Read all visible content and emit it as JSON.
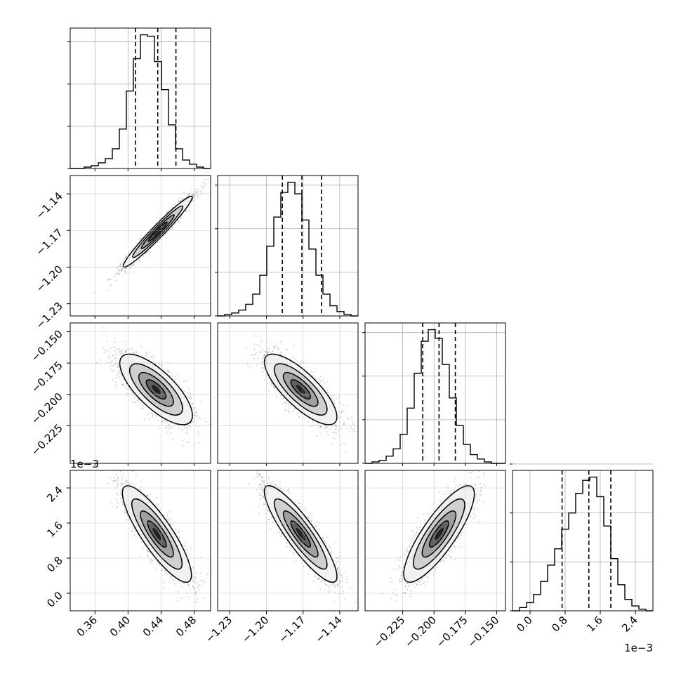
{
  "chart_data": {
    "type": "corner",
    "title": "",
    "grid": true,
    "parameters": [
      {
        "name": "",
        "range": [
          0.33,
          0.5
        ],
        "ticks": [
          0.36,
          0.4,
          0.44,
          0.48
        ],
        "tick_labels": [
          "0.36",
          "0.40",
          "0.44",
          "0.48"
        ],
        "scale_label": "",
        "quantiles": [
          0.409,
          0.436,
          0.458
        ],
        "hist_values": [
          0,
          0,
          1,
          2,
          4,
          7,
          14,
          28,
          55,
          78,
          95,
          94,
          76,
          56,
          31,
          14,
          6,
          3,
          1,
          0
        ],
        "hist_ticks": [
          0,
          30,
          60,
          90
        ]
      },
      {
        "name": "",
        "range": [
          -1.24,
          -1.125
        ],
        "ticks": [
          -1.23,
          -1.2,
          -1.17,
          -1.14
        ],
        "tick_labels": [
          "−1.23",
          "−1.20",
          "−1.17",
          "−1.14"
        ],
        "scale_label": "",
        "quantiles": [
          -1.187,
          -1.171,
          -1.155
        ],
        "hist_values": [
          0,
          1,
          2,
          4,
          8,
          15,
          28,
          48,
          68,
          85,
          92,
          84,
          66,
          46,
          28,
          15,
          7,
          3,
          1,
          0
        ],
        "hist_ticks": [
          0,
          30,
          60,
          90
        ]
      },
      {
        "name": "",
        "range": [
          -0.255,
          -0.143
        ],
        "ticks": [
          -0.225,
          -0.2,
          -0.175,
          -0.15
        ],
        "tick_labels": [
          "−0.225",
          "−0.200",
          "−0.175",
          "−0.150"
        ],
        "scale_label": "",
        "quantiles": [
          -0.209,
          -0.196,
          -0.183
        ],
        "hist_values": [
          0,
          1,
          2,
          5,
          10,
          20,
          38,
          62,
          84,
          92,
          86,
          68,
          45,
          26,
          13,
          6,
          3,
          1,
          0,
          0
        ],
        "hist_ticks": [
          0,
          30,
          60,
          90
        ]
      },
      {
        "name": "",
        "range": [
          -0.0004,
          0.0028
        ],
        "ticks": [
          0.0,
          0.8,
          1.6,
          2.4
        ],
        "tick_labels": [
          "0.0",
          "0.8",
          "1.6",
          "2.4"
        ],
        "scale_label": "1e−3",
        "quantiles": [
          0.00073,
          0.00134,
          0.00184
        ],
        "hist_values": [
          0,
          2,
          5,
          10,
          18,
          28,
          38,
          50,
          60,
          72,
          80,
          82,
          70,
          52,
          32,
          16,
          7,
          3,
          1,
          0
        ],
        "hist_ticks": [
          0,
          30,
          60,
          90
        ]
      }
    ],
    "pairs": [
      {
        "x": 0,
        "y": 1,
        "mean": [
          0.436,
          -1.171
        ],
        "sd": [
          0.019,
          0.0132
        ],
        "corr": 0.97
      },
      {
        "x": 0,
        "y": 2,
        "mean": [
          0.434,
          -0.196
        ],
        "sd": [
          0.02,
          0.0128
        ],
        "corr": -0.74
      },
      {
        "x": 1,
        "y": 2,
        "mean": [
          -1.172,
          -0.196
        ],
        "sd": [
          0.0135,
          0.0128
        ],
        "corr": -0.78
      },
      {
        "x": 0,
        "y": 3,
        "mean": [
          0.435,
          0.00135
        ],
        "sd": [
          0.019,
          0.0005
        ],
        "corr": -0.85
      },
      {
        "x": 1,
        "y": 3,
        "mean": [
          -1.172,
          0.00135
        ],
        "sd": [
          0.0135,
          0.0005
        ],
        "corr": -0.88
      },
      {
        "x": 2,
        "y": 3,
        "mean": [
          -0.196,
          0.00135
        ],
        "sd": [
          0.0128,
          0.0005
        ],
        "corr": 0.83
      }
    ],
    "contour_levels_sigma": [
      0.5,
      1.0,
      1.5,
      2.0
    ],
    "samples_per_panel": 2600
  }
}
